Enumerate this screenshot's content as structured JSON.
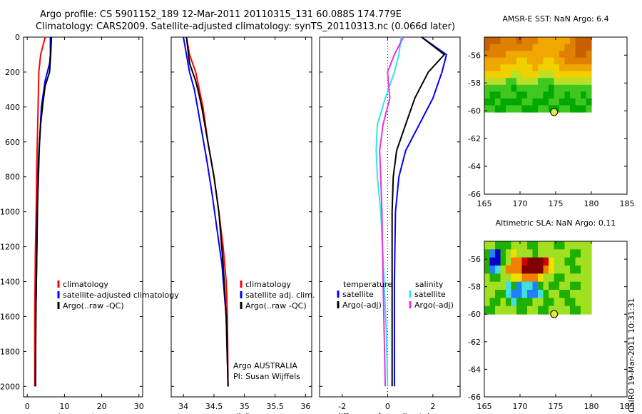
{
  "header": {
    "line1": "Argo profile: CS 5901152_189 12-Mar-2011 20110315_131 60.088S 174.779E",
    "line2": "Climatology: CARS2009. Satellite-adjusted climatology: synTS_20110313.nc (0.066d later)"
  },
  "credit": "CSIRO 19-Mar-2011 10:31:31",
  "colors": {
    "red": "#ff0000",
    "blue": "#0000ff",
    "black": "#000000",
    "cyan": "#33e6e6",
    "magenta": "#e633e6",
    "marker": "#e6e640"
  },
  "chart_data": [
    {
      "type": "line",
      "panel": "temperature",
      "xlabel": "temperature",
      "xlim": [
        -1,
        31
      ],
      "ylim": [
        2060,
        0
      ],
      "xticks": [
        0,
        10,
        20,
        30
      ],
      "yticks": [
        0,
        200,
        400,
        600,
        800,
        1000,
        1200,
        1400,
        1600,
        1800,
        2000
      ],
      "legend": [
        "climatology",
        "satellite-adjusted climatology",
        "Argo(..raw -QC)"
      ],
      "series": [
        {
          "name": "climatology",
          "color": "red",
          "x": [
            4.8,
            3.6,
            3.1,
            2.9,
            2.7,
            2.5,
            2.4,
            2.2,
            2.1,
            2.0,
            2.0
          ],
          "y": [
            0,
            100,
            200,
            400,
            600,
            800,
            1000,
            1200,
            1400,
            1600,
            2000
          ]
        },
        {
          "name": "satellite-adjusted climatology",
          "color": "blue",
          "x": [
            6.2,
            6.2,
            6.0,
            4.8,
            3.8,
            3.3,
            3.0,
            2.7,
            2.5,
            2.3,
            2.2
          ],
          "y": [
            0,
            100,
            150,
            250,
            400,
            600,
            800,
            1000,
            1300,
            1600,
            2000
          ]
        },
        {
          "name": "Argo(..raw -QC)",
          "color": "black",
          "x": [
            6.5,
            6.3,
            6.0,
            4.8,
            4.2,
            3.6,
            3.0,
            2.8,
            2.6,
            2.3,
            2.2
          ],
          "y": [
            0,
            100,
            200,
            280,
            380,
            500,
            700,
            900,
            1200,
            1600,
            2000
          ]
        }
      ]
    },
    {
      "type": "line",
      "panel": "salinity",
      "xlabel": "salinity",
      "xlim": [
        33.8,
        36.1
      ],
      "ylim": [
        2060,
        0
      ],
      "xticks": [
        34,
        34.5,
        35,
        35.5,
        36
      ],
      "legend": [
        "climatology",
        "satellite adj. clim.",
        "Argo(..raw -QC)"
      ],
      "annotation": [
        "Argo AUSTRALIA",
        "PI: Susan Wijffels"
      ],
      "series": [
        {
          "name": "climatology",
          "color": "red",
          "x": [
            34.05,
            34.1,
            34.2,
            34.32,
            34.4,
            34.5,
            34.58,
            34.65,
            34.7,
            34.72,
            34.73
          ],
          "y": [
            0,
            100,
            200,
            400,
            600,
            800,
            1000,
            1200,
            1400,
            1600,
            2000
          ]
        },
        {
          "name": "satellite adj. clim.",
          "color": "blue",
          "x": [
            34.0,
            34.05,
            34.1,
            34.18,
            34.28,
            34.38,
            34.47,
            34.55,
            34.63,
            34.7,
            34.73
          ],
          "y": [
            0,
            100,
            200,
            300,
            500,
            700,
            900,
            1100,
            1300,
            1600,
            2000
          ]
        },
        {
          "name": "Argo(..raw -QC)",
          "color": "black",
          "x": [
            34.05,
            34.1,
            34.2,
            34.25,
            34.3,
            34.4,
            34.5,
            34.58,
            34.65,
            34.7,
            34.73
          ],
          "y": [
            0,
            150,
            250,
            320,
            400,
            600,
            800,
            1000,
            1300,
            1600,
            2000
          ]
        }
      ]
    },
    {
      "type": "line",
      "panel": "difference",
      "xlabel": "difference from climatology",
      "xlim": [
        -3,
        3.2
      ],
      "ylim": [
        2060,
        0
      ],
      "xticks": [
        -2,
        0,
        2
      ],
      "legend_temperature": {
        "heading": "temperature",
        "items": [
          "satellite",
          "Argo(-adj)"
        ]
      },
      "legend_salinity": {
        "heading": "salinity",
        "items": [
          "satellite",
          "Argo(-adj)"
        ]
      },
      "series": [
        {
          "name": "temperature satellite",
          "color": "blue",
          "x": [
            1.5,
            2.6,
            2.4,
            2.0,
            1.4,
            0.8,
            0.5,
            0.35,
            0.3,
            0.3,
            0.3
          ],
          "y": [
            0,
            100,
            200,
            350,
            500,
            650,
            800,
            1000,
            1400,
            1700,
            2000
          ]
        },
        {
          "name": "temperature Argo(-adj)",
          "color": "black",
          "x": [
            1.5,
            2.5,
            1.8,
            1.2,
            0.8,
            0.4,
            0.25,
            0.2,
            0.2,
            0.2,
            0.2
          ],
          "y": [
            0,
            100,
            200,
            350,
            500,
            650,
            800,
            1000,
            1400,
            1700,
            2000
          ]
        },
        {
          "name": "salinity satellite",
          "color": "cyan",
          "x": [
            0.6,
            0.5,
            0.3,
            -0.1,
            -0.45,
            -0.5,
            -0.45,
            -0.3,
            -0.15,
            -0.05,
            0.0
          ],
          "y": [
            0,
            100,
            200,
            350,
            500,
            650,
            800,
            1000,
            1400,
            1700,
            2000
          ]
        },
        {
          "name": "salinity Argo(-adj)",
          "color": "magenta",
          "x": [
            0.7,
            0.3,
            0.0,
            0.1,
            -0.2,
            -0.35,
            -0.3,
            -0.25,
            -0.2,
            -0.15,
            -0.1
          ],
          "y": [
            0,
            100,
            200,
            350,
            500,
            650,
            800,
            1000,
            1400,
            1700,
            2000
          ]
        }
      ]
    },
    {
      "type": "heatmap",
      "panel": "AMSR-E SST",
      "title": "AMSR-E SST: NaN Argo: 6.4",
      "xlim": [
        165,
        185
      ],
      "ylim": [
        -66,
        -54.7
      ],
      "xticks": [
        165,
        170,
        175,
        180,
        185
      ],
      "yticks": [
        -56,
        -58,
        -60,
        -62,
        -64,
        -66
      ],
      "marker": {
        "lon": 174.779,
        "lat": -60.088
      },
      "colorscale": [
        "#00a800",
        "#40c820",
        "#b8e028",
        "#f0d000",
        "#f0a800",
        "#e08000",
        "#c86000"
      ],
      "grid": [
        [
          6,
          6,
          6,
          5,
          5,
          5,
          6,
          5,
          5,
          5,
          4,
          4,
          4,
          4,
          4,
          4,
          5,
          6,
          6,
          6
        ],
        [
          6,
          5,
          5,
          5,
          5,
          5,
          5,
          5,
          5,
          4,
          4,
          4,
          4,
          4,
          4,
          5,
          5,
          6,
          6,
          6
        ],
        [
          5,
          5,
          5,
          5,
          4,
          4,
          4,
          4,
          4,
          4,
          4,
          4,
          4,
          4,
          5,
          5,
          5,
          6,
          6,
          5
        ],
        [
          4,
          4,
          4,
          4,
          4,
          4,
          3,
          3,
          4,
          4,
          4,
          3,
          3,
          4,
          4,
          5,
          5,
          5,
          5,
          5
        ],
        [
          4,
          4,
          4,
          3,
          3,
          3,
          3,
          3,
          3,
          4,
          3,
          3,
          3,
          3,
          4,
          4,
          4,
          4,
          4,
          4
        ],
        [
          3,
          3,
          3,
          3,
          3,
          2,
          2,
          3,
          3,
          3,
          2,
          2,
          2,
          3,
          3,
          3,
          3,
          3,
          3,
          3
        ],
        [
          2,
          2,
          2,
          2,
          1,
          1,
          2,
          2,
          2,
          2,
          1,
          1,
          1,
          2,
          2,
          2,
          2,
          2,
          2,
          2
        ],
        [
          1,
          1,
          1,
          1,
          1,
          0,
          1,
          1,
          1,
          1,
          1,
          1,
          0,
          1,
          1,
          1,
          1,
          1,
          1,
          1
        ],
        [
          1,
          0,
          0,
          1,
          1,
          1,
          0,
          0,
          1,
          1,
          1,
          0,
          0,
          1,
          1,
          0,
          1,
          1,
          0,
          1
        ],
        [
          0,
          0,
          1,
          0,
          0,
          0,
          0,
          1,
          1,
          0,
          0,
          0,
          1,
          1,
          0,
          0,
          0,
          1,
          1,
          0
        ],
        [
          1,
          1,
          0,
          0,
          1,
          1,
          1,
          0,
          0,
          0,
          1,
          1,
          0,
          0,
          1,
          1,
          0,
          0,
          0,
          1
        ]
      ]
    },
    {
      "type": "heatmap",
      "panel": "Altimetric SLA",
      "title": "Altimetric SLA: NaN Argo: 0.11",
      "xlim": [
        165,
        185
      ],
      "ylim": [
        -66,
        -54.7
      ],
      "xticks": [
        165,
        170,
        175,
        180,
        185
      ],
      "yticks": [
        -56,
        -58,
        -60,
        -62,
        -64,
        -66
      ],
      "marker": {
        "lon": 174.779,
        "lat": -60.088
      },
      "colorscale": [
        "#0000c8",
        "#2080ff",
        "#40e0e0",
        "#20b000",
        "#a0e020",
        "#f0e000",
        "#f08000",
        "#d00000",
        "#800000"
      ],
      "grid": [
        [
          4,
          4,
          3,
          3,
          3,
          4,
          4,
          4,
          3,
          3,
          4,
          4,
          4,
          3,
          3,
          4,
          4,
          4,
          4,
          4
        ],
        [
          3,
          1,
          0,
          3,
          4,
          5,
          4,
          4,
          4,
          3,
          4,
          4,
          4,
          4,
          4,
          4,
          3,
          3,
          4,
          4
        ],
        [
          3,
          0,
          0,
          3,
          4,
          6,
          6,
          7,
          8,
          8,
          8,
          7,
          5,
          4,
          4,
          3,
          3,
          4,
          4,
          4
        ],
        [
          3,
          1,
          2,
          4,
          6,
          6,
          6,
          8,
          8,
          8,
          8,
          6,
          5,
          4,
          4,
          4,
          3,
          3,
          4,
          4
        ],
        [
          4,
          3,
          3,
          4,
          4,
          5,
          5,
          6,
          6,
          6,
          5,
          4,
          4,
          3,
          3,
          4,
          4,
          4,
          4,
          4
        ],
        [
          4,
          4,
          4,
          4,
          2,
          3,
          1,
          2,
          2,
          1,
          3,
          4,
          3,
          3,
          4,
          4,
          3,
          3,
          4,
          4
        ],
        [
          4,
          4,
          3,
          3,
          2,
          1,
          1,
          2,
          1,
          1,
          2,
          3,
          4,
          4,
          3,
          3,
          4,
          4,
          4,
          4
        ],
        [
          4,
          3,
          3,
          4,
          3,
          2,
          3,
          3,
          3,
          4,
          4,
          3,
          3,
          4,
          4,
          3,
          3,
          4,
          4,
          4
        ],
        [
          3,
          3,
          4,
          4,
          4,
          4,
          3,
          3,
          4,
          4,
          3,
          3,
          4,
          4,
          4,
          4,
          3,
          3,
          4,
          4
        ]
      ]
    }
  ]
}
